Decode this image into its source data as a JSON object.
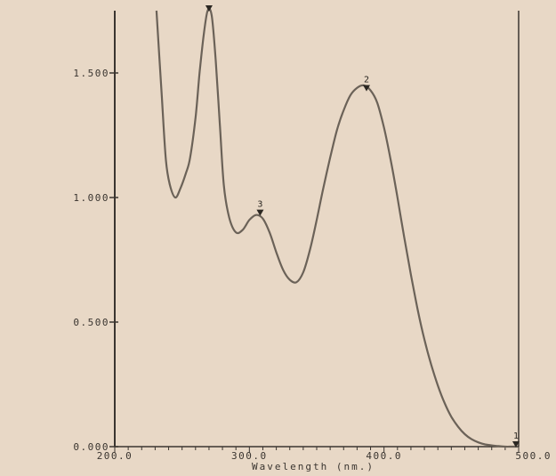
{
  "colors": {
    "paper": "#e8d8c6",
    "ink": "#3a3530",
    "trace": "#6b6258"
  },
  "chart_data": {
    "type": "line",
    "title": "",
    "xlabel": "Wavelength (nm.)",
    "ylabel": "",
    "xlim": [
      200.0,
      500.0
    ],
    "ylim": [
      0.0,
      1.75
    ],
    "x_ticks": [
      "200.0",
      "300.0",
      "400.0",
      "500.0"
    ],
    "y_ticks": [
      "0.000",
      "0.500",
      "1.000",
      "1.500"
    ],
    "series": [
      {
        "x": [
          231,
          235,
          238,
          241,
          245,
          249,
          253,
          256,
          260,
          263,
          266,
          269,
          272,
          275,
          278,
          281,
          285,
          290,
          295,
          300,
          305,
          310,
          315,
          320,
          325,
          330,
          335,
          340,
          345,
          350,
          355,
          360,
          365,
          370,
          375,
          380,
          385,
          390,
          395,
          400,
          405,
          410,
          415,
          420,
          425,
          430,
          435,
          440,
          445,
          450,
          455,
          460,
          465,
          470,
          475,
          480,
          485,
          490,
          495,
          499
        ],
        "y": [
          1.75,
          1.4,
          1.15,
          1.05,
          1.0,
          1.04,
          1.1,
          1.16,
          1.32,
          1.5,
          1.65,
          1.75,
          1.73,
          1.55,
          1.3,
          1.05,
          0.92,
          0.86,
          0.87,
          0.91,
          0.93,
          0.915,
          0.86,
          0.78,
          0.71,
          0.67,
          0.66,
          0.7,
          0.79,
          0.91,
          1.04,
          1.16,
          1.27,
          1.35,
          1.41,
          1.44,
          1.45,
          1.43,
          1.38,
          1.28,
          1.15,
          1.0,
          0.84,
          0.69,
          0.55,
          0.43,
          0.33,
          0.245,
          0.175,
          0.12,
          0.08,
          0.05,
          0.03,
          0.017,
          0.009,
          0.005,
          0.002,
          0.0,
          0.0,
          0.0
        ]
      }
    ],
    "peak_markers": [
      {
        "label": "",
        "x": 270,
        "y": 1.75
      },
      {
        "label": "2",
        "x": 387,
        "y": 1.43
      },
      {
        "label": "3",
        "x": 308,
        "y": 0.93
      },
      {
        "label": "1",
        "x": 498,
        "y": 0.0
      }
    ],
    "grid": false
  }
}
